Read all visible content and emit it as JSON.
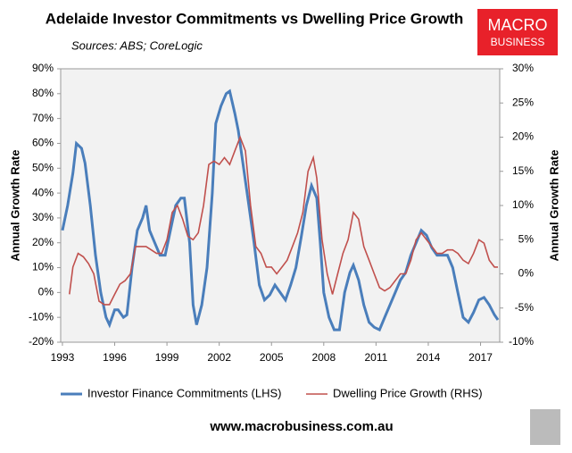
{
  "chart_data": {
    "type": "line",
    "title": "Adelaide Investor Commitments vs Dwelling Price Growth",
    "subtitle": "Sources: ABS; CoreLogic",
    "ylabel": "Annual Growth Rate",
    "y2label": "Annual Growth Rate",
    "xlim": [
      1992.9,
      2018.1
    ],
    "xticks": [
      1993,
      1996,
      1999,
      2002,
      2005,
      2008,
      2011,
      2014,
      2017
    ],
    "ylim": [
      -20,
      90
    ],
    "yticks": [
      {
        "value": -20,
        "label": "-20%"
      },
      {
        "value": -10,
        "label": "-10%"
      },
      {
        "value": 0,
        "label": "0%"
      },
      {
        "value": 10,
        "label": "10%"
      },
      {
        "value": 20,
        "label": "20%"
      },
      {
        "value": 30,
        "label": "30%"
      },
      {
        "value": 40,
        "label": "40%"
      },
      {
        "value": 50,
        "label": "50%"
      },
      {
        "value": 60,
        "label": "60%"
      },
      {
        "value": 70,
        "label": "70%"
      },
      {
        "value": 80,
        "label": "80%"
      },
      {
        "value": 90,
        "label": "90%"
      }
    ],
    "y2lim": [
      -10,
      30
    ],
    "y2ticks": [
      {
        "value": -10,
        "label": "-10%"
      },
      {
        "value": -5,
        "label": "-5%"
      },
      {
        "value": 0,
        "label": "0%"
      },
      {
        "value": 5,
        "label": "5%"
      },
      {
        "value": 10,
        "label": "10%"
      },
      {
        "value": 15,
        "label": "15%"
      },
      {
        "value": 20,
        "label": "20%"
      },
      {
        "value": 25,
        "label": "25%"
      },
      {
        "value": 30,
        "label": "30%"
      }
    ],
    "legend": "bottom",
    "series": [
      {
        "name": "Investor Finance Commitments (LHS)",
        "color": "#4a7ebb",
        "axis": "y",
        "x": [
          1993.0,
          1993.3,
          1993.6,
          1993.8,
          1994.1,
          1994.3,
          1994.6,
          1994.9,
          1995.2,
          1995.5,
          1995.7,
          1996.0,
          1996.2,
          1996.5,
          1996.7,
          1997.0,
          1997.3,
          1997.6,
          1997.8,
          1998.0,
          1998.3,
          1998.6,
          1998.9,
          1999.2,
          1999.5,
          1999.8,
          2000.0,
          2000.3,
          2000.5,
          2000.7,
          2001.0,
          2001.3,
          2001.6,
          2001.8,
          2002.1,
          2002.4,
          2002.6,
          2002.9,
          2003.1,
          2003.4,
          2003.7,
          2004.0,
          2004.3,
          2004.6,
          2004.9,
          2005.2,
          2005.5,
          2005.8,
          2006.1,
          2006.4,
          2006.7,
          2007.0,
          2007.3,
          2007.6,
          2007.8,
          2008.0,
          2008.3,
          2008.6,
          2008.9,
          2009.2,
          2009.5,
          2009.7,
          2010.0,
          2010.3,
          2010.6,
          2010.9,
          2011.2,
          2011.5,
          2011.8,
          2012.1,
          2012.4,
          2012.7,
          2013.0,
          2013.3,
          2013.6,
          2013.9,
          2014.2,
          2014.5,
          2014.8,
          2015.1,
          2015.4,
          2015.7,
          2016.0,
          2016.3,
          2016.6,
          2016.9,
          2017.2,
          2017.5,
          2017.8,
          2018.0
        ],
        "values": [
          25,
          35,
          48,
          60,
          58,
          52,
          35,
          15,
          0,
          -10,
          -13,
          -7,
          -7,
          -10,
          -9,
          10,
          25,
          30,
          35,
          25,
          20,
          15,
          15,
          25,
          35,
          38,
          38,
          20,
          -5,
          -13,
          -5,
          10,
          40,
          68,
          75,
          80,
          81,
          72,
          65,
          50,
          35,
          20,
          3,
          -3,
          -1,
          3,
          0,
          -3,
          3,
          10,
          22,
          35,
          43,
          38,
          20,
          0,
          -10,
          -15,
          -15,
          0,
          8,
          11,
          5,
          -5,
          -12,
          -14,
          -15,
          -10,
          -5,
          0,
          5,
          8,
          15,
          20,
          25,
          23,
          18,
          15,
          15,
          15,
          10,
          0,
          -10,
          -12,
          -8,
          -3,
          -2,
          -5,
          -9,
          -11
        ]
      },
      {
        "name": "Dwelling Price Growth (RHS)",
        "color": "#c0504d",
        "axis": "y2",
        "x": [
          1993.4,
          1993.6,
          1993.9,
          1994.2,
          1994.5,
          1994.8,
          1995.1,
          1995.4,
          1995.7,
          1996.0,
          1996.3,
          1996.6,
          1996.9,
          1997.2,
          1997.5,
          1997.8,
          1998.1,
          1998.4,
          1998.7,
          1999.0,
          1999.3,
          1999.6,
          1999.9,
          2000.2,
          2000.5,
          2000.8,
          2001.1,
          2001.4,
          2001.7,
          2002.0,
          2002.3,
          2002.6,
          2002.9,
          2003.2,
          2003.5,
          2003.8,
          2004.1,
          2004.4,
          2004.7,
          2005.0,
          2005.3,
          2005.6,
          2005.9,
          2006.2,
          2006.5,
          2006.8,
          2007.1,
          2007.4,
          2007.6,
          2007.9,
          2008.2,
          2008.5,
          2008.8,
          2009.1,
          2009.4,
          2009.7,
          2010.0,
          2010.3,
          2010.6,
          2010.9,
          2011.2,
          2011.5,
          2011.8,
          2012.1,
          2012.4,
          2012.7,
          2013.0,
          2013.3,
          2013.6,
          2013.9,
          2014.2,
          2014.5,
          2014.8,
          2015.1,
          2015.4,
          2015.7,
          2016.0,
          2016.3,
          2016.6,
          2016.9,
          2017.2,
          2017.5,
          2017.8,
          2018.0
        ],
        "values": [
          -3,
          1,
          3,
          2.5,
          1.5,
          0,
          -4,
          -4.5,
          -4.5,
          -3,
          -1.5,
          -1,
          0,
          4,
          4,
          4,
          3.5,
          3,
          3,
          5,
          9,
          10,
          8,
          5.5,
          5,
          6,
          10,
          16,
          16.5,
          16,
          17,
          16,
          18,
          20,
          18,
          10,
          4,
          3,
          1,
          1,
          0,
          1,
          2,
          4,
          6,
          9,
          15,
          17,
          14,
          5,
          0,
          -3,
          0,
          3,
          5,
          9,
          8,
          4,
          2,
          0,
          -2,
          -2.5,
          -2,
          -1,
          0,
          0,
          2,
          5,
          6,
          5,
          4,
          3,
          3,
          3.5,
          3.5,
          3,
          2,
          1.5,
          3,
          5,
          4.5,
          2,
          1,
          1
        ]
      }
    ]
  },
  "logo": [
    "MACRO",
    "BUSINESS"
  ],
  "footer": "www.macrobusiness.com.au"
}
